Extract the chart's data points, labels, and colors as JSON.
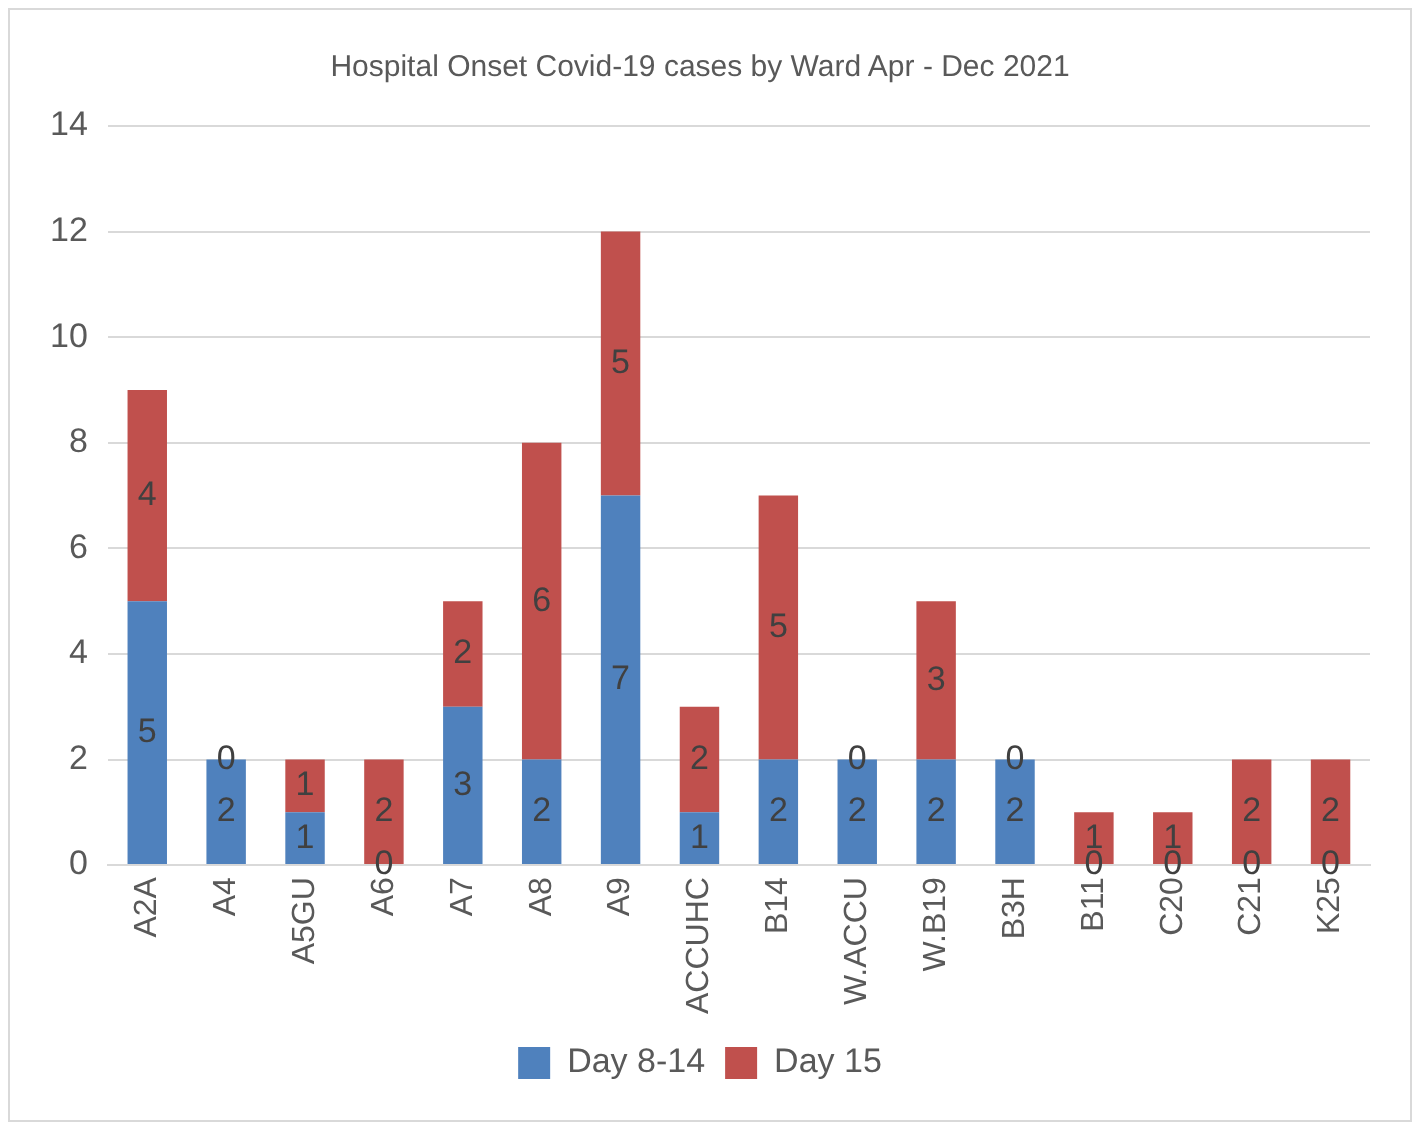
{
  "chart_data": {
    "type": "bar",
    "title": "Hospital Onset Covid-19 cases by Ward Apr - Dec 2021",
    "categories": [
      "A2A",
      "A4",
      "A5GU",
      "A6",
      "A7",
      "A8",
      "A9",
      "ACCUHC",
      "B14",
      "W.ACCU",
      "W.B19",
      "B3H",
      "B11",
      "C20",
      "C21",
      "K25"
    ],
    "series": [
      {
        "name": "Day 8-14",
        "color": "#4f81bd",
        "values": [
          5,
          2,
          1,
          0,
          3,
          2,
          7,
          1,
          2,
          2,
          2,
          2,
          0,
          0,
          0,
          0
        ]
      },
      {
        "name": "Day 15",
        "color": "#c0504d",
        "values": [
          4,
          0,
          1,
          2,
          2,
          6,
          5,
          2,
          5,
          0,
          3,
          0,
          1,
          1,
          2,
          2
        ]
      }
    ],
    "stacked": true,
    "ylim": [
      0,
      14
    ],
    "yticks": [
      0,
      2,
      4,
      6,
      8,
      10,
      12,
      14
    ],
    "grid": "y",
    "legend": "bottom",
    "data_labels": true
  }
}
